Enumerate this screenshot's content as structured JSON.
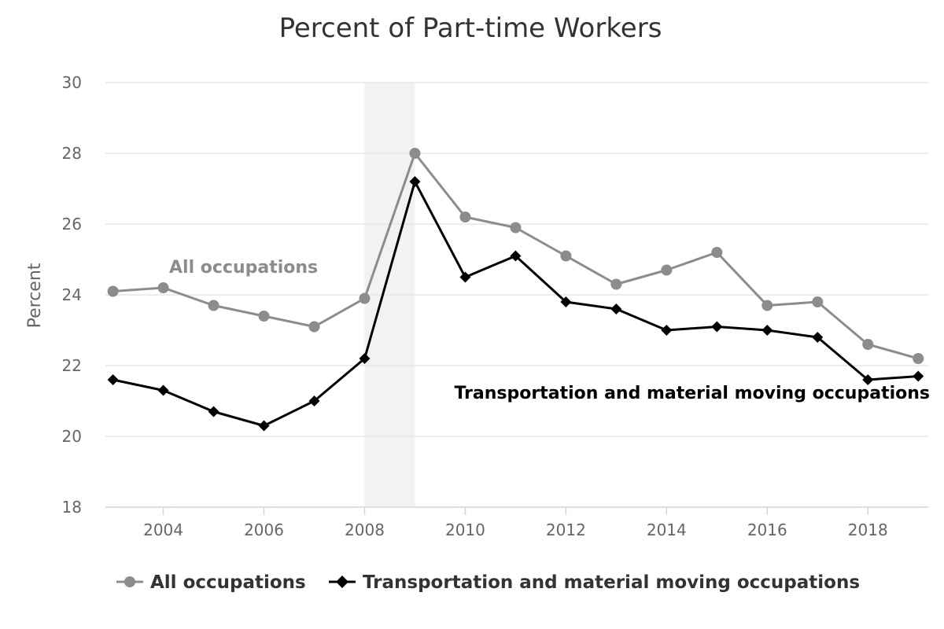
{
  "chart_data": {
    "type": "line",
    "title": "Percent of Part-time Workers",
    "ylabel": "Percent",
    "xlabel": "",
    "x": [
      2003,
      2004,
      2005,
      2006,
      2007,
      2008,
      2009,
      2010,
      2011,
      2012,
      2013,
      2014,
      2015,
      2016,
      2017,
      2018,
      2019
    ],
    "xlim": [
      2002.85,
      2019.2
    ],
    "ylim": [
      18,
      30
    ],
    "x_ticks": [
      2004,
      2006,
      2008,
      2010,
      2012,
      2014,
      2016,
      2018
    ],
    "y_ticks": [
      18,
      20,
      22,
      24,
      26,
      28,
      30
    ],
    "grid": true,
    "shaded_band": {
      "x_from": 2008,
      "x_to": 2009
    },
    "legend_position": "bottom-left",
    "series": [
      {
        "name": "All occupations",
        "color": "#8c8c8c",
        "marker": "circle",
        "values": [
          24.1,
          24.2,
          23.7,
          23.4,
          23.1,
          23.9,
          28.0,
          26.2,
          25.9,
          25.1,
          24.3,
          24.7,
          25.2,
          23.7,
          23.8,
          22.6,
          22.2
        ]
      },
      {
        "name": "Transportation and material moving occupations",
        "color": "#000000",
        "marker": "diamond",
        "values": [
          21.6,
          21.3,
          20.7,
          20.3,
          21.0,
          22.2,
          27.2,
          24.5,
          25.1,
          23.8,
          23.6,
          23.0,
          23.1,
          23.0,
          22.8,
          21.6,
          21.7
        ]
      }
    ],
    "annotations": [
      {
        "text": "All occupations",
        "series_index": 0
      },
      {
        "text": "Transportation and material moving occupations",
        "series_index": 1
      }
    ]
  }
}
